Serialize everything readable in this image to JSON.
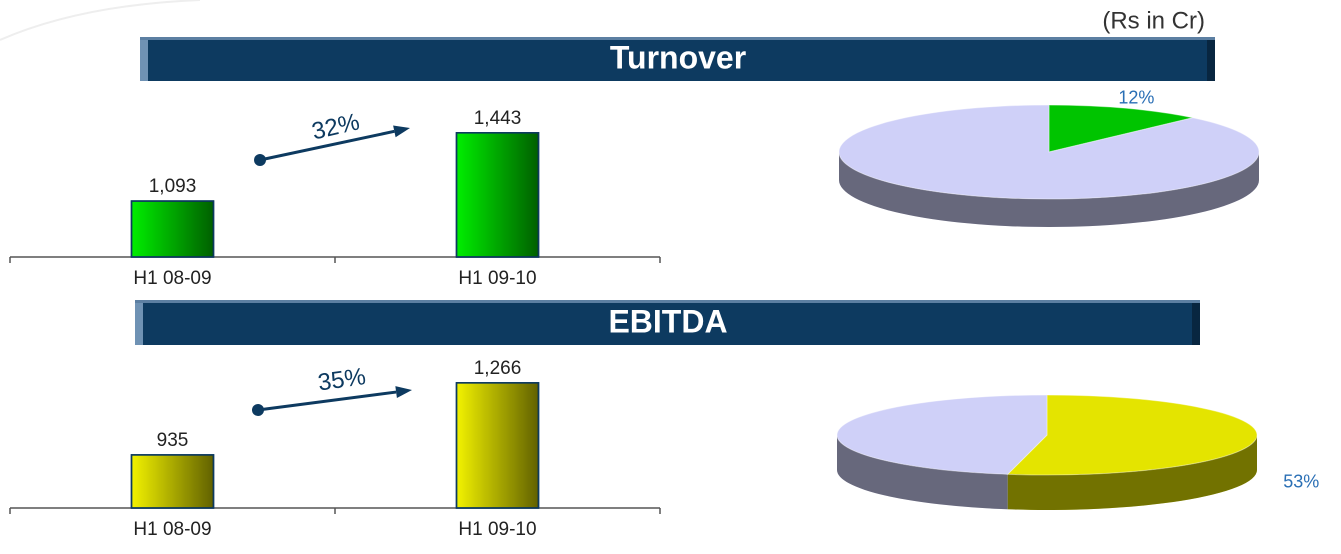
{
  "unit": "(Rs in Cr)",
  "chart_data": [
    {
      "type": "bar",
      "title": "Turnover",
      "categories": [
        "H1 08-09",
        "H1 09-10"
      ],
      "values": [
        1093,
        1443
      ],
      "value_labels": [
        "1,093",
        "1,443"
      ],
      "color": "#00ee00",
      "ylim": [
        806,
        1560
      ],
      "annotation": "32%"
    },
    {
      "type": "pie",
      "values": [
        12,
        88
      ],
      "value_labels": [
        "12%",
        null
      ],
      "colors": [
        "#00c400",
        "#cfd0f8"
      ]
    },
    {
      "type": "bar",
      "title": "EBITDA",
      "categories": [
        "H1 08-09",
        "H1 09-10"
      ],
      "values": [
        935,
        1266
      ],
      "value_labels": [
        "935",
        "1,266"
      ],
      "color": "#f2f200",
      "ylim": [
        691,
        1325
      ],
      "annotation": "35%"
    },
    {
      "type": "pie",
      "values": [
        53,
        47
      ],
      "value_labels": [
        "53%",
        null
      ],
      "colors": [
        "#e4e400",
        "#cfd0f8"
      ]
    }
  ]
}
